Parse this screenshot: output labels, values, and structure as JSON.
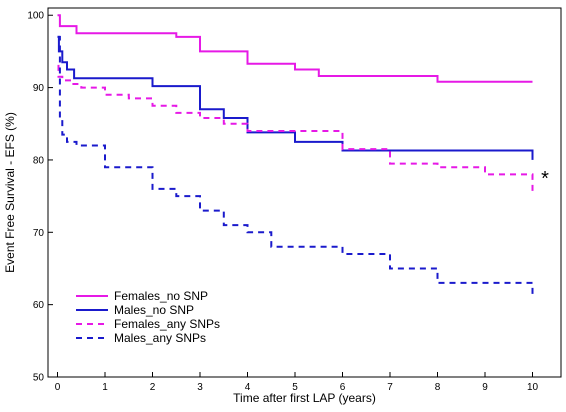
{
  "chart_data": {
    "type": "line",
    "step": true,
    "xlabel": "Time after first LAP (years)",
    "ylabel": "Event Free Survival - EFS (%)",
    "xlim": [
      -0.2,
      10.6
    ],
    "ylim": [
      50,
      101
    ],
    "xticks": [
      0,
      1,
      2,
      3,
      4,
      5,
      6,
      7,
      8,
      9,
      10
    ],
    "yticks": [
      50,
      60,
      70,
      80,
      90,
      100
    ],
    "grid": false,
    "legend_position": "bottom-left",
    "annotation": "*",
    "series": [
      {
        "name": "Females_no SNP",
        "color": "#e619e6",
        "dash": "solid",
        "x": [
          0,
          0.05,
          0.4,
          2.5,
          3,
          4,
          5,
          5.5,
          8,
          10
        ],
        "y": [
          100,
          98.5,
          97.5,
          97,
          95,
          93.3,
          92.5,
          91.6,
          90.8,
          90.8
        ]
      },
      {
        "name": "Males_no SNP",
        "color": "#1a1acc",
        "dash": "solid",
        "x": [
          0,
          0.03,
          0.1,
          0.2,
          0.35,
          2,
          3,
          3.5,
          4,
          5,
          6,
          10,
          10
        ],
        "y": [
          97,
          95,
          93.5,
          92.5,
          91.3,
          90.2,
          87,
          85.8,
          83.8,
          82.5,
          81.3,
          81.3,
          80
        ]
      },
      {
        "name": "Females_any SNPs",
        "color": "#e619e6",
        "dash": "dashed",
        "x": [
          0,
          0.02,
          0.1,
          0.3,
          0.5,
          1,
          1.5,
          2,
          2.5,
          3,
          3.5,
          4,
          6,
          7,
          8,
          9,
          10,
          10
        ],
        "y": [
          93,
          91.5,
          91,
          90.5,
          90,
          89,
          88.5,
          87.5,
          86.5,
          85.8,
          85,
          84,
          81.5,
          79.5,
          79,
          78,
          77.8,
          75.3
        ]
      },
      {
        "name": "Males_any SNPs",
        "color": "#1a1acc",
        "dash": "dashed",
        "x": [
          0,
          0.05,
          0.1,
          0.2,
          0.4,
          1,
          2,
          2.5,
          3,
          3.5,
          4,
          4.5,
          6,
          7,
          8,
          10,
          10
        ],
        "y": [
          97,
          86,
          83.5,
          82.5,
          82,
          79,
          76,
          75,
          73,
          71,
          70,
          68,
          67,
          65,
          63,
          63,
          61
        ]
      }
    ]
  }
}
